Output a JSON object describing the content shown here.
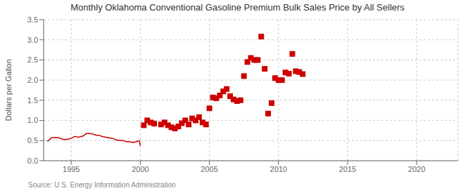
{
  "chart_data": {
    "type": "line",
    "title": "Monthly Oklahoma Conventional Gasoline Premium Bulk Sales Price by All Sellers",
    "ylabel": "Dollars per Gallon",
    "annotations": [
      "Source: U.S. Energy Information Administration"
    ],
    "xlim": [
      1993,
      2023
    ],
    "xticks": [
      1995,
      2000,
      2005,
      2010,
      2015,
      2020
    ],
    "ylim": [
      0,
      3.5
    ],
    "yticks": [
      {
        "value": 0,
        "label": "0.0"
      },
      0.5,
      {
        "value": 1,
        "label": "1.0"
      },
      1.5,
      {
        "value": 2,
        "label": "2.0"
      },
      2.5,
      {
        "value": 3,
        "label": "3.0"
      },
      3.5
    ],
    "grid": true,
    "series": [
      {
        "type": "line",
        "color": "#cc0000",
        "x": [
          1993.25,
          1993.33,
          1993.42,
          1993.5,
          1993.58,
          1993.67,
          1993.75,
          1993.83,
          1993.92,
          1994.0,
          1994.08,
          1994.17,
          1994.25,
          1994.33,
          1994.42,
          1994.5,
          1994.58,
          1994.67,
          1994.75,
          1994.83,
          1994.92,
          1995.0,
          1995.08,
          1995.17,
          1995.25,
          1995.33,
          1995.42,
          1995.5,
          1995.58,
          1995.67,
          1995.75,
          1995.83,
          1995.92,
          1996.0,
          1996.08,
          1996.17,
          1996.25,
          1996.33,
          1996.42,
          1996.5,
          1996.58,
          1996.67,
          1996.75,
          1996.83,
          1996.92,
          1997.0,
          1997.08,
          1997.17,
          1997.25,
          1997.33,
          1997.42,
          1997.5,
          1997.58,
          1997.67,
          1997.75,
          1997.83,
          1997.92,
          1998.0,
          1998.08,
          1998.17,
          1998.25,
          1998.33,
          1998.42,
          1998.5,
          1998.58,
          1998.67,
          1998.75,
          1998.83,
          1998.92,
          1999.0,
          1999.08,
          1999.17,
          1999.25,
          1999.33,
          1999.42,
          1999.5,
          1999.58,
          1999.67,
          1999.75,
          1999.83,
          1999.92,
          2000.0
        ],
        "values": [
          0.48,
          0.5,
          0.52,
          0.55,
          0.57,
          0.57,
          0.57,
          0.58,
          0.57,
          0.58,
          0.57,
          0.56,
          0.55,
          0.54,
          0.53,
          0.52,
          0.53,
          0.53,
          0.53,
          0.54,
          0.55,
          0.56,
          0.57,
          0.59,
          0.6,
          0.6,
          0.59,
          0.58,
          0.59,
          0.6,
          0.6,
          0.61,
          0.63,
          0.65,
          0.67,
          0.68,
          0.68,
          0.67,
          0.67,
          0.67,
          0.66,
          0.65,
          0.64,
          0.63,
          0.63,
          0.63,
          0.62,
          0.61,
          0.6,
          0.59,
          0.59,
          0.58,
          0.58,
          0.57,
          0.57,
          0.56,
          0.56,
          0.55,
          0.54,
          0.53,
          0.52,
          0.51,
          0.51,
          0.5,
          0.5,
          0.5,
          0.5,
          0.49,
          0.48,
          0.48,
          0.47,
          0.47,
          0.47,
          0.46,
          0.46,
          0.45,
          0.46,
          0.47,
          0.48,
          0.49,
          0.5,
          0.37
        ]
      },
      {
        "type": "scatter",
        "color": "#cc0000",
        "marker": "square",
        "x": [
          2000.25,
          2000.5,
          2000.75,
          2001.0,
          2001.5,
          2001.75,
          2002.0,
          2002.25,
          2002.5,
          2002.75,
          2003.0,
          2003.25,
          2003.5,
          2003.75,
          2004.0,
          2004.25,
          2004.5,
          2004.75,
          2005.0,
          2005.25,
          2005.5,
          2005.75,
          2006.0,
          2006.25,
          2006.5,
          2006.75,
          2007.0,
          2007.25,
          2007.5,
          2007.75,
          2008.0,
          2008.25,
          2008.5,
          2008.75,
          2009.0,
          2009.25,
          2009.5,
          2009.75,
          2010.0,
          2010.25,
          2010.5,
          2010.75,
          2011.0,
          2011.25,
          2011.5,
          2011.75
        ],
        "values": [
          0.88,
          1.0,
          0.95,
          0.92,
          0.9,
          0.95,
          0.88,
          0.83,
          0.8,
          0.85,
          0.93,
          1.0,
          0.9,
          1.05,
          1.0,
          1.08,
          0.95,
          0.9,
          1.3,
          1.57,
          1.55,
          1.62,
          1.72,
          1.78,
          1.6,
          1.52,
          1.48,
          1.5,
          2.1,
          2.45,
          2.55,
          2.5,
          2.5,
          3.08,
          2.28,
          1.17,
          1.43,
          2.05,
          2.0,
          2.0,
          2.19,
          2.16,
          2.65,
          2.22,
          2.2,
          2.15
        ]
      }
    ]
  }
}
